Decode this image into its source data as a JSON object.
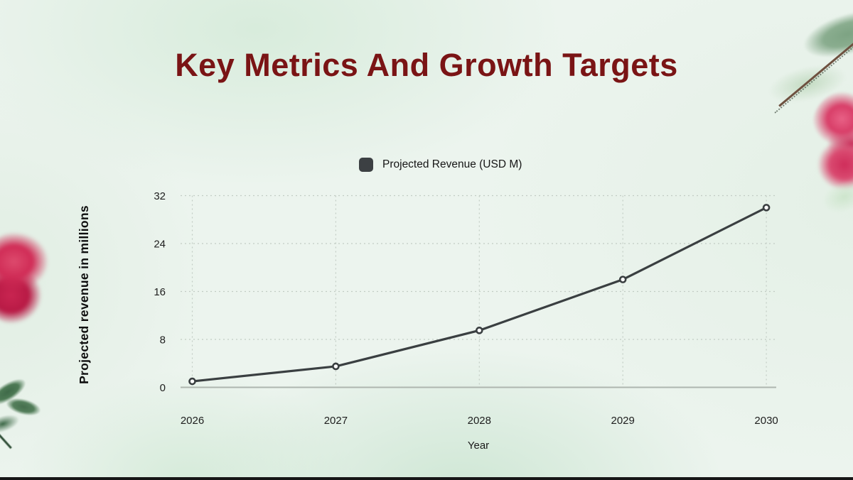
{
  "slide": {
    "title": "Key Metrics And Growth Targets"
  },
  "chart_data": {
    "type": "line",
    "x": [
      "2026",
      "2027",
      "2028",
      "2029",
      "2030"
    ],
    "series": [
      {
        "name": "Projected Revenue (USD M)",
        "values": [
          1,
          3.5,
          9.5,
          18,
          30
        ],
        "color": "#3a3f41",
        "marker": "open-circle"
      }
    ],
    "title": "",
    "xlabel": "Year",
    "ylabel": "Projected revenue in millions",
    "yticks": [
      0,
      8,
      16,
      24,
      32
    ],
    "ylim": [
      0,
      32
    ],
    "grid": true,
    "grid_style": "dashed",
    "legend_position": "top-center"
  },
  "colors": {
    "title": "#7a1415",
    "line": "#3a3f41",
    "legend_marker": "#3c4043",
    "grid": "#c2ccc4",
    "baseline": "#aeb6af",
    "tick_text": "#1e1e1e",
    "background": "#ecf4ee"
  },
  "decorations": [
    {
      "name": "watercolor-flower-left",
      "color": "#c92953"
    },
    {
      "name": "watercolor-leaves-bottom-left",
      "color": "#46704f"
    },
    {
      "name": "eucalyptus-leaves-top-right",
      "color": "#84a98a"
    },
    {
      "name": "branch-top-right",
      "color": "#6e5140"
    },
    {
      "name": "watercolor-rose-right",
      "color": "#d63e68"
    },
    {
      "name": "leaf-right-edge",
      "color": "#cde5cc"
    },
    {
      "name": "bottom-edge-bar",
      "color": "#161616"
    }
  ]
}
